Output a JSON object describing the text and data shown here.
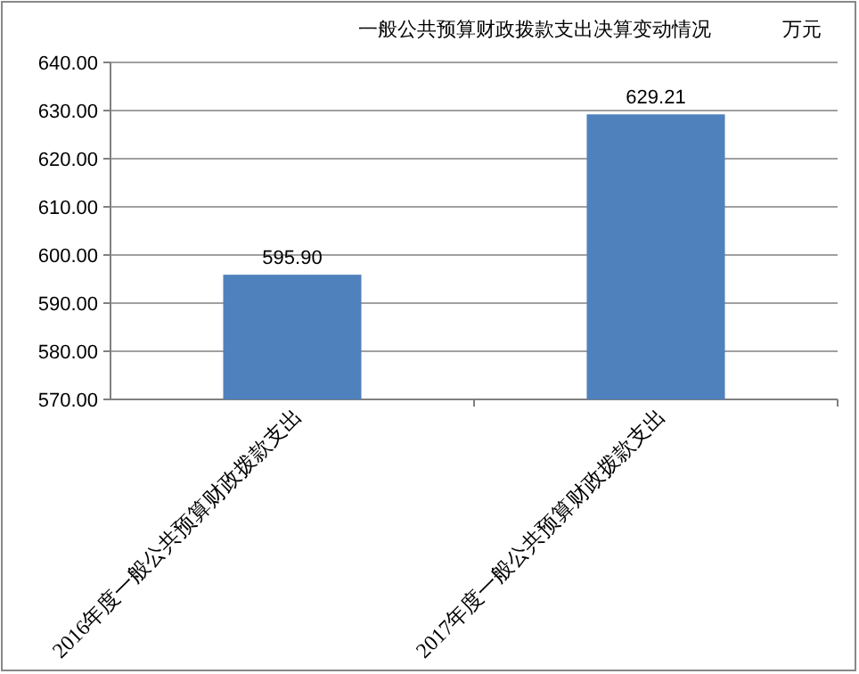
{
  "chart_data": {
    "type": "bar",
    "title": "一般公共预算财政拨款支出决算变动情况",
    "ylabel": "万元",
    "categories": [
      "2016年度一般公共预算财政拨款支出",
      "2017年度一般公共预算财政拨款支出"
    ],
    "values": [
      595.9,
      629.21
    ],
    "value_labels": [
      "595.90",
      "629.21"
    ],
    "color": "#4f81bd",
    "ylim": [
      570,
      640
    ],
    "yticks": [
      {
        "value": 570,
        "label": "570.00"
      },
      {
        "value": 580,
        "label": "580.00"
      },
      {
        "value": 590,
        "label": "590.00"
      },
      {
        "value": 600,
        "label": "600.00"
      },
      {
        "value": 610,
        "label": "610.00"
      },
      {
        "value": 620,
        "label": "620.00"
      },
      {
        "value": 630,
        "label": "630.00"
      },
      {
        "value": 640,
        "label": "640.00"
      }
    ],
    "grid": "y"
  }
}
